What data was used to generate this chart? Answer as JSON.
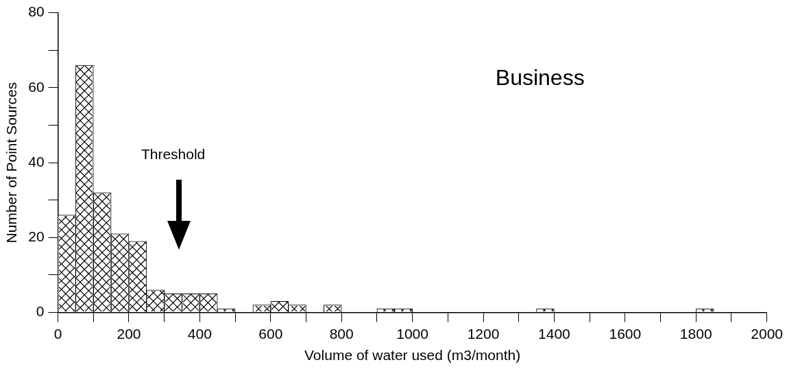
{
  "chart_data": {
    "type": "histogram",
    "xlabel": "Volume of water used (m3/month)",
    "ylabel": "Number of Point Sources",
    "bins": [
      0,
      50,
      100,
      150,
      200,
      250,
      300,
      350,
      400,
      450,
      500,
      550,
      600,
      650,
      700,
      750,
      800,
      850,
      900,
      950,
      1000,
      1050,
      1100,
      1150,
      1200,
      1250,
      1300,
      1350,
      1400,
      1450,
      1500,
      1550,
      1600,
      1650,
      1700,
      1750,
      1800,
      1850,
      1900,
      1950,
      2000
    ],
    "values": [
      26,
      66,
      32,
      21,
      19,
      6,
      5,
      5,
      5,
      1,
      0,
      2,
      3,
      2,
      0,
      2,
      0,
      0,
      1,
      1,
      0,
      0,
      0,
      0,
      0,
      0,
      0,
      1,
      0,
      0,
      0,
      0,
      0,
      0,
      0,
      0,
      1,
      0,
      0,
      0
    ],
    "color": "#ffffff",
    "xlim": [
      0,
      2000
    ],
    "xticks": [
      0,
      {
        "value": 100,
        "label": null
      },
      200,
      {
        "value": 300,
        "label": null
      },
      400,
      {
        "value": 500,
        "label": null
      },
      600,
      {
        "value": 700,
        "label": null
      },
      800,
      {
        "value": 900,
        "label": null
      },
      1000,
      {
        "value": 1100,
        "label": null
      },
      1200,
      {
        "value": 1300,
        "label": null
      },
      1400,
      {
        "value": 1500,
        "label": null
      },
      1600,
      {
        "value": 1700,
        "label": null
      },
      1800,
      {
        "value": 1900,
        "label": null
      },
      2000
    ],
    "ylim": [
      0,
      80
    ],
    "yticks": [
      0,
      {
        "value": 10,
        "label": null
      },
      20,
      {
        "value": 30,
        "label": null
      },
      40,
      {
        "value": 50,
        "label": null
      },
      60,
      {
        "value": 70,
        "label": null
      },
      80
    ],
    "grid": false,
    "legend": false,
    "annotations": [
      "Business",
      "Threshold"
    ]
  }
}
